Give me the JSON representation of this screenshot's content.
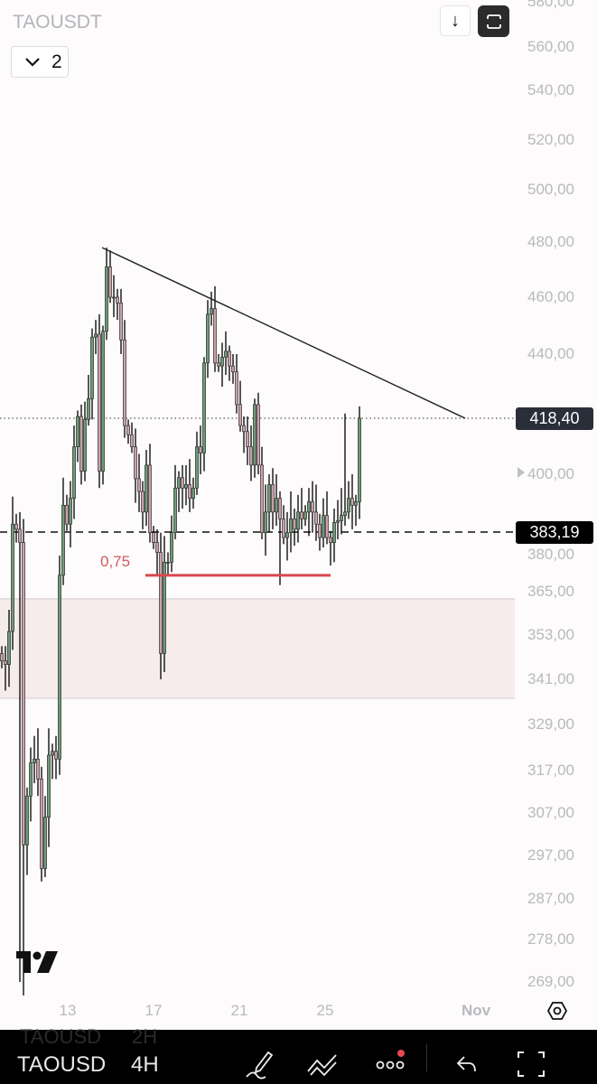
{
  "header": {
    "symbol": "TAOUSDT",
    "indicator_count": "2",
    "scroll_down_icon": "arrow-down-icon",
    "fullscreen_icon": "fullscreen-icon"
  },
  "price_labels": {
    "current": "418,40",
    "line": "383,19"
  },
  "fib_label": "0,75",
  "axis": {
    "price_ticks": [
      "580,00",
      "560,00",
      "540,00",
      "520,00",
      "500,00",
      "480,00",
      "460,00",
      "440,00",
      "400,00",
      "380,00",
      "365,00",
      "353,00",
      "341,00",
      "329,00",
      "317,00",
      "307,00",
      "297,00",
      "287,00",
      "278,00",
      "269,00"
    ],
    "date_ticks": [
      "13",
      "17",
      "21",
      "25",
      "Nov"
    ]
  },
  "bottom_bar": {
    "ghost_symbol": "TAOUSD",
    "ghost_interval": "2H",
    "symbol": "TAOUSD",
    "interval": "4H"
  },
  "colors": {
    "up": "#6f9a7a",
    "down": "#c9a1ab",
    "wick": "#111111",
    "fib_line": "#d9474f",
    "zone": "#f7ecec",
    "current_label": "#2a2e39"
  },
  "chart_data": {
    "type": "candlestick",
    "title": "TAOUSDT",
    "interval": "4H",
    "close": [
      346,
      345,
      354,
      385.5,
      384,
      380,
      299.5,
      311,
      319,
      320,
      315,
      294,
      306,
      321,
      322,
      320,
      370,
      391,
      385.5,
      393,
      409,
      419,
      401,
      418,
      425,
      446,
      447,
      401,
      448,
      471,
      460,
      460,
      458,
      445,
      416,
      413,
      409,
      398.7,
      395,
      389,
      403,
      383,
      380,
      377,
      348,
      374,
      374,
      383,
      396,
      399,
      396,
      397,
      393,
      396,
      409,
      407,
      437,
      454,
      456,
      437,
      436,
      439,
      441,
      436,
      434,
      423,
      416,
      414,
      409,
      403,
      423,
      403,
      383,
      389,
      397,
      389,
      393,
      387,
      381.5,
      383,
      387,
      384,
      389,
      387,
      389,
      392,
      389,
      385.5,
      381.5,
      388,
      381.5,
      380,
      386,
      386.5,
      388,
      389,
      393,
      391,
      392,
      418.4
    ],
    "wick_extremes": [
      {
        "index": 5,
        "low": 269
      },
      {
        "index": 6,
        "low": 266
      },
      {
        "index": 29,
        "high": 478
      },
      {
        "index": 44,
        "low": 341
      },
      {
        "index": 57,
        "high": 459
      },
      {
        "index": 77,
        "low": 367
      },
      {
        "index": 95,
        "high": 420
      }
    ],
    "current_price": 418.4,
    "horizontal_line": 383.19,
    "fib_level": {
      "label": "0,75",
      "price": 370
    },
    "zone": {
      "top": 363,
      "bottom": 336
    },
    "trendline": {
      "start_price": 478,
      "end_price": 418.4
    },
    "ylim": [
      266,
      582
    ]
  }
}
